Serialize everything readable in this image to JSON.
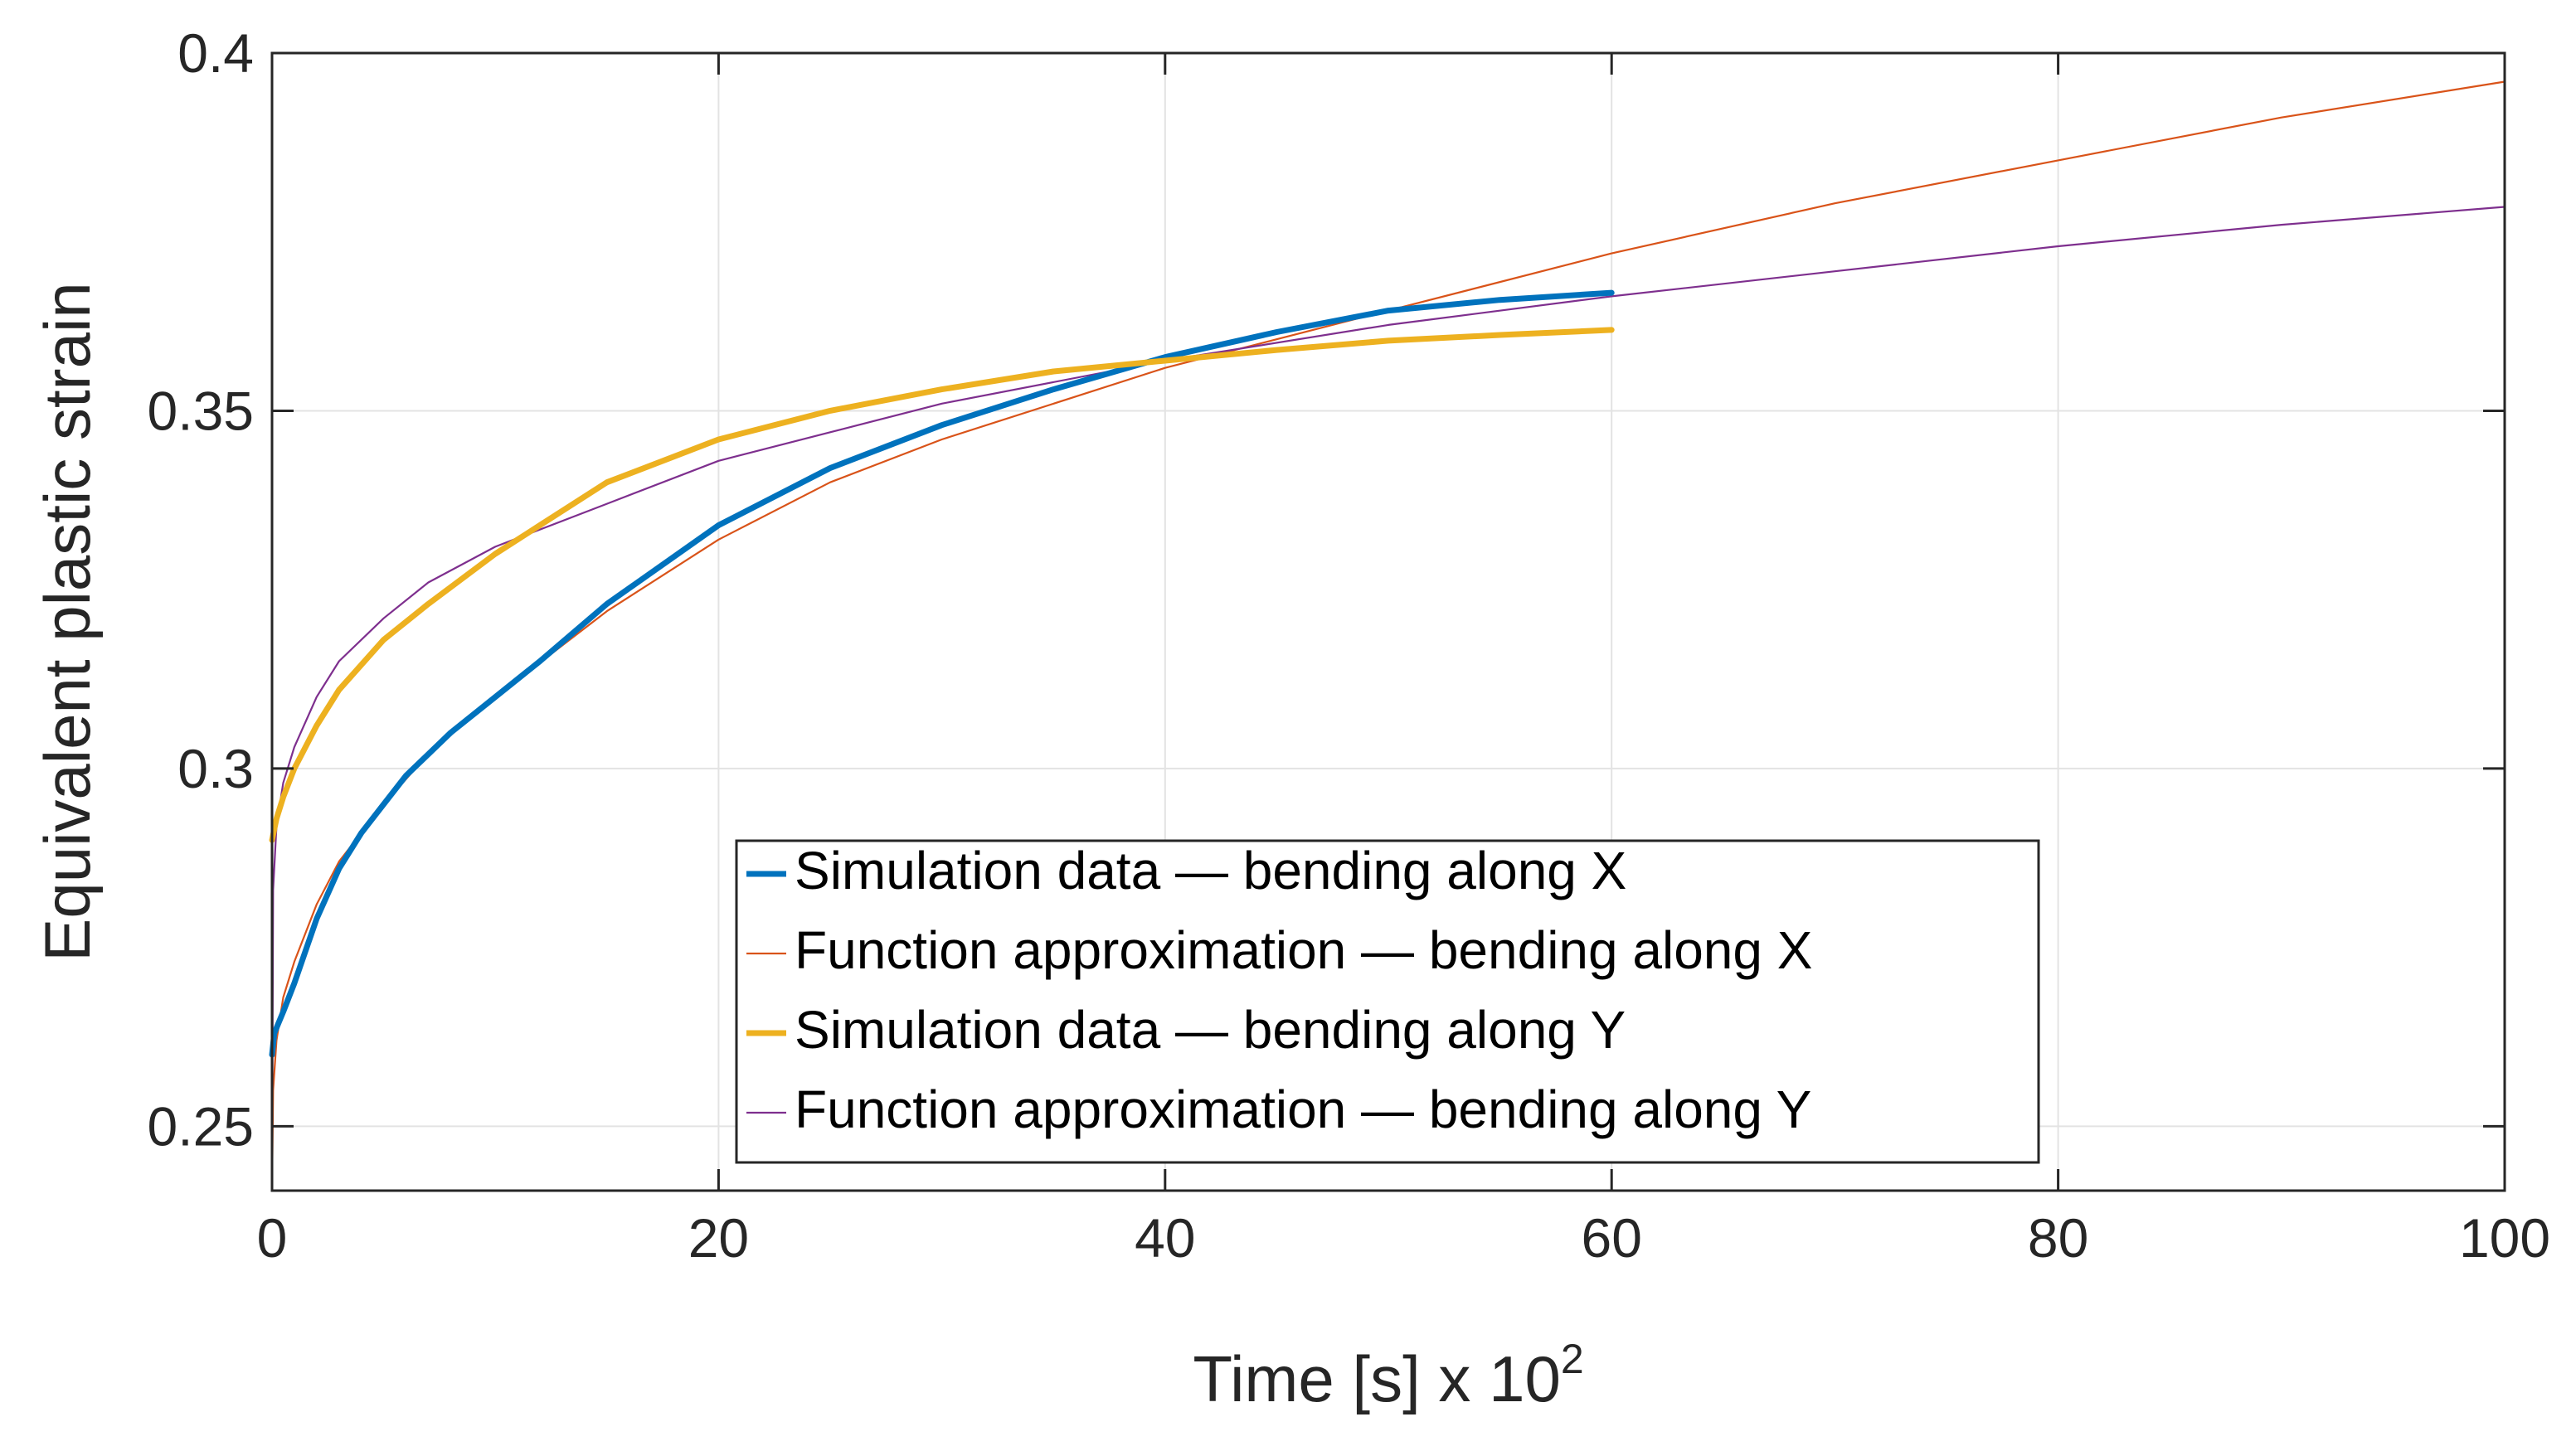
{
  "chart_data": {
    "type": "line",
    "title": "",
    "xlabel": "Time [s] x 10",
    "xlabel_exponent": "2",
    "ylabel": "Equivalent plastic strain",
    "xlim": [
      0,
      100
    ],
    "ylim": [
      0.241,
      0.4
    ],
    "xticks": [
      0,
      20,
      40,
      60,
      80,
      100
    ],
    "xtick_labels": [
      "0",
      "20",
      "40",
      "60",
      "80",
      "100"
    ],
    "yticks": [
      0.25,
      0.3,
      0.35,
      0.4
    ],
    "ytick_labels": [
      "0.25",
      "0.3",
      "0.35",
      "0.4"
    ],
    "grid": true,
    "legend_position": "bottom-center",
    "series": [
      {
        "name": "Simulation data — bending along X",
        "color": "#0072BD",
        "x": [
          0,
          0.1,
          0.5,
          1,
          2,
          3,
          4,
          5,
          6,
          8,
          10,
          12,
          15,
          20,
          25,
          30,
          35,
          40,
          45,
          50,
          55,
          60
        ],
        "y": [
          0.26,
          0.263,
          0.266,
          0.27,
          0.279,
          0.286,
          0.291,
          0.295,
          0.299,
          0.305,
          0.31,
          0.315,
          0.323,
          0.334,
          0.342,
          0.348,
          0.353,
          0.3575,
          0.361,
          0.364,
          0.3655,
          0.3665
        ]
      },
      {
        "name": "Function approximation — bending along X",
        "color": "#D95319",
        "x": [
          0,
          0.05,
          0.2,
          0.5,
          1,
          2,
          3,
          5,
          7,
          10,
          15,
          20,
          25,
          30,
          40,
          50,
          60,
          70,
          80,
          90,
          100
        ],
        "y": [
          0.241,
          0.255,
          0.262,
          0.268,
          0.273,
          0.281,
          0.287,
          0.295,
          0.302,
          0.31,
          0.322,
          0.332,
          0.34,
          0.346,
          0.356,
          0.364,
          0.372,
          0.379,
          0.385,
          0.391,
          0.396
        ]
      },
      {
        "name": "Simulation data — bending along Y",
        "color": "#EDB120",
        "x": [
          0,
          0.2,
          0.5,
          1,
          2,
          3,
          5,
          7,
          10,
          12,
          15,
          20,
          25,
          30,
          35,
          40,
          45,
          50,
          55,
          60
        ],
        "y": [
          0.29,
          0.293,
          0.296,
          0.3,
          0.306,
          0.311,
          0.318,
          0.323,
          0.33,
          0.334,
          0.34,
          0.346,
          0.35,
          0.353,
          0.3555,
          0.357,
          0.3585,
          0.3598,
          0.3606,
          0.3613
        ]
      },
      {
        "name": "Function approximation — bending along Y",
        "color": "#7E2F8E",
        "x": [
          0,
          0.05,
          0.2,
          0.5,
          1,
          2,
          3,
          5,
          7,
          10,
          15,
          20,
          25,
          30,
          40,
          50,
          60,
          70,
          80,
          90,
          100
        ],
        "y": [
          0.241,
          0.283,
          0.292,
          0.298,
          0.303,
          0.31,
          0.315,
          0.321,
          0.326,
          0.331,
          0.337,
          0.343,
          0.347,
          0.351,
          0.357,
          0.362,
          0.366,
          0.3695,
          0.373,
          0.376,
          0.3785
        ]
      }
    ]
  }
}
